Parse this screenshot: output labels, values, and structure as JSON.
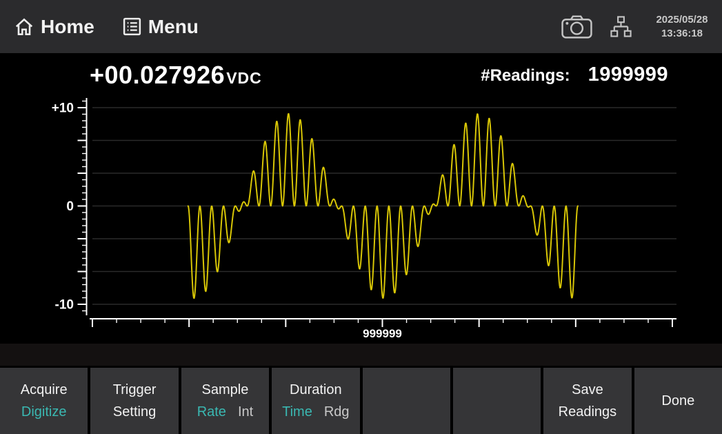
{
  "topbar": {
    "home_label": "Home",
    "menu_label": "Menu",
    "date": "2025/05/28",
    "time": "13:36:18",
    "icons": [
      "home-icon",
      "menu-icon",
      "camera-icon",
      "network-icon"
    ]
  },
  "reading": {
    "value": "+00.027926",
    "unit": "VDC",
    "readings_label": "#Readings:",
    "readings_count": "1999999"
  },
  "chart_data": {
    "type": "line",
    "title": "",
    "xlabel": "",
    "ylabel": "",
    "ylim": [
      -10,
      10
    ],
    "yticks": [
      10,
      0,
      -10
    ],
    "ytick_labels": [
      "+10",
      "0",
      "-10"
    ],
    "y_major_divisions": 6,
    "y_minor_per_division": 5,
    "x_major_divisions": 6,
    "x_minor_per_division": 4,
    "x_center_tick_label": "999999",
    "x_range_readings": [
      0,
      1999999
    ],
    "grid": "horizontal-only",
    "legend": "none",
    "line_color": "#d8c606",
    "waveform": {
      "model": "am-burst: y = -A*cos(2PI*(u-phase)/envPeriod) * (1-cos(2PI*carrierCycles*u))/2",
      "amplitude": 9.4,
      "peak_value": 9.4,
      "envelope_period_frac": 0.4885,
      "envelope_phase_frac": 0.015,
      "carrier_cycles": 33,
      "span_frac": [
        0.165,
        0.837
      ],
      "samples": 900
    }
  },
  "softkeys": [
    {
      "line1": "Acquire",
      "line2a": "Digitize"
    },
    {
      "line1": "Trigger",
      "line2a": "Setting"
    },
    {
      "line1": "Sample",
      "line2a": "Rate",
      "line2b": "Int"
    },
    {
      "line1": "Duration",
      "line2a": "Time",
      "line2b": "Rdg"
    },
    {},
    {},
    {
      "line1": "Save",
      "line2a": "Readings"
    },
    {
      "line1": "Done"
    }
  ],
  "colors": {
    "bg": "#000000",
    "topbar_bg": "#2b2b2d",
    "softkey_bg": "#353537",
    "band_bg": "#141111",
    "accent": "#3ab8b2",
    "text": "#f2f2f2",
    "dim": "#c9c9c9",
    "grid": "#2b2b2b",
    "axis": "#ffffff",
    "waveform": "#d8c606"
  }
}
